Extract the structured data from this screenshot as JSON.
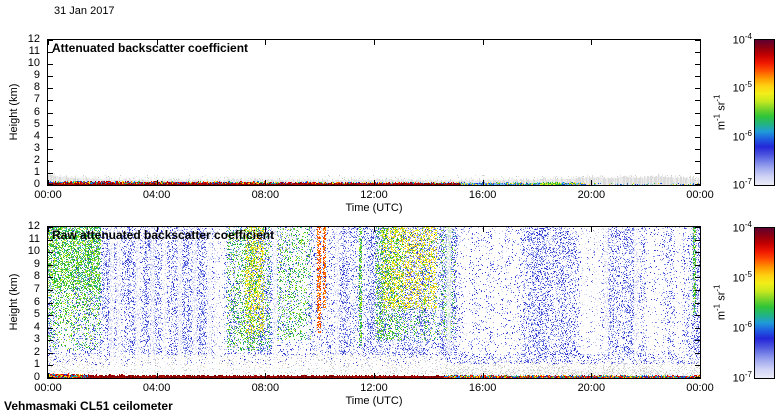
{
  "page": {
    "date_label": "31 Jan 2017",
    "footer_label": "Vehmasmaki CL51 ceilometer",
    "background": "#ffffff"
  },
  "palettes": {
    "blues": [
      "#d6dbf5",
      "#b8c1f0",
      "#96a3ea",
      "#6f7ee2",
      "#4a55d8",
      "#2f36cc",
      "#8d9cee"
    ],
    "greens": [
      "#22b32a",
      "#3ec437",
      "#66d32f",
      "#93e027",
      "#bfeb20",
      "#27a44e",
      "#36b9b0"
    ],
    "yellows": [
      "#eff01a",
      "#ffdf17",
      "#d3e816",
      "#ffc013"
    ],
    "oranges": [
      "#ff9a00",
      "#ff7300",
      "#ff4d00",
      "#e83200"
    ],
    "grays": [
      "#dedede",
      "#d2d2d2",
      "#e6e6e6",
      "#c8c8c8"
    ],
    "darkreds": [
      "#7c0000",
      "#960000",
      "#b00000",
      "#640000",
      "#a81400"
    ],
    "bandmix": [
      "#c00000",
      "#ff5a00",
      "#ffd800",
      "#3cc43c",
      "#2244dd",
      "#7a0030",
      "#ff0000",
      "#00a0e0"
    ],
    "bandcool": [
      "#2f7fd6",
      "#3ec437",
      "#2244dd",
      "#66ccee",
      "#ffd800",
      "#8495e8"
    ],
    "greensband": [
      "#3ec437",
      "#bfeb20",
      "#eff01a",
      "#27a44e"
    ]
  },
  "colormap_stops": [
    "#ebecf8",
    "#d3d6f5",
    "#aab2f0",
    "#7a85e8",
    "#4a52dd",
    "#2326d8",
    "#1e5ce0",
    "#1f9bd8",
    "#22b480",
    "#2fc438",
    "#7ad428",
    "#c8e81e",
    "#f2ee18",
    "#ffd012",
    "#ff9800",
    "#ff5000",
    "#f01800",
    "#c40000",
    "#8e0010",
    "#5f0030"
  ],
  "chart_data": [
    {
      "type": "heatmap",
      "title": "Attenuated backscatter coefficient",
      "xlabel": "Time (UTC)",
      "ylabel": "Height (km)",
      "x_tick_labels": [
        "00:00",
        "04:00",
        "08:00",
        "12:00",
        "16:00",
        "20:00",
        "00:00"
      ],
      "y_tick_labels": [
        "0",
        "1",
        "2",
        "3",
        "4",
        "5",
        "6",
        "7",
        "8",
        "9",
        "10",
        "11",
        "12"
      ],
      "xlim_hours": [
        0,
        24
      ],
      "ylim_km": [
        0,
        12
      ],
      "colorbar": {
        "scale": "log",
        "min": "1e-7",
        "max": "1e-4",
        "ticks": [
          {
            "base": "10",
            "exp": "-4"
          },
          {
            "base": "10",
            "exp": "-5"
          },
          {
            "base": "10",
            "exp": "-6"
          },
          {
            "base": "10",
            "exp": "-7"
          }
        ],
        "unit": [
          {
            "base": "m",
            "exp": "-1"
          },
          {
            "base": " sr",
            "exp": "-1"
          }
        ]
      },
      "layers": [
        {
          "type": "gray_columns",
          "color": "#dcdcdc",
          "light": "#ebebeb",
          "spike_km": 0.5,
          "profile": [
            [
              0,
              0.85
            ],
            [
              0.5,
              0.65
            ],
            [
              1,
              0.55
            ],
            [
              1.6,
              0.48
            ],
            [
              2.5,
              0.42
            ],
            [
              4,
              0.38
            ],
            [
              6,
              0.36
            ],
            [
              8,
              0.4
            ],
            [
              10,
              0.36
            ],
            [
              12,
              0.4
            ],
            [
              14,
              0.35
            ],
            [
              16,
              0.37
            ],
            [
              18,
              0.4
            ],
            [
              19,
              0.48
            ],
            [
              20,
              0.6
            ],
            [
              20.6,
              0.52
            ],
            [
              21.2,
              0.66
            ],
            [
              21.8,
              0.56
            ],
            [
              22.4,
              0.7
            ],
            [
              23,
              0.6
            ],
            [
              23.6,
              0.5
            ],
            [
              24,
              0.46
            ]
          ]
        },
        {
          "type": "noise",
          "t0": 0,
          "t1": 24,
          "h0": 0.3,
          "h1": 0.8,
          "density": 0.05,
          "palette": "grays"
        },
        {
          "type": "band",
          "t0": 0,
          "t1": 15.2,
          "top0": 0.24,
          "top1": 0.13,
          "palette": "bandmix"
        },
        {
          "type": "band",
          "t0": 15.2,
          "t1": 19.8,
          "top0": 0.13,
          "top1": 0.1,
          "palette": "bandcool"
        },
        {
          "type": "band",
          "t0": 18.15,
          "t1": 18.85,
          "top0": 0.16,
          "top1": 0.16,
          "palette": "greensband"
        },
        {
          "type": "noise",
          "t0": 19.8,
          "t1": 24,
          "h0": 0,
          "h1": 0.14,
          "density": 0.3,
          "palette": "bandcool"
        },
        {
          "type": "band",
          "t0": 0,
          "t1": 15.2,
          "top0": 0.07,
          "top1": 0.05,
          "palette": "darkreds"
        }
      ]
    },
    {
      "type": "heatmap",
      "title": "Raw attenuated backscatter coefficient",
      "xlabel": "Time (UTC)",
      "ylabel": "Height (km)",
      "x_tick_labels": [
        "00:00",
        "04:00",
        "08:00",
        "12:00",
        "16:00",
        "20:00",
        "00:00"
      ],
      "y_tick_labels": [
        "0",
        "1",
        "2",
        "3",
        "4",
        "5",
        "6",
        "7",
        "8",
        "9",
        "10",
        "11",
        "12"
      ],
      "xlim_hours": [
        0,
        24
      ],
      "ylim_km": [
        0,
        12
      ],
      "colorbar": {
        "scale": "log",
        "min": "1e-7",
        "max": "1e-4",
        "ticks": [
          {
            "base": "10",
            "exp": "-4"
          },
          {
            "base": "10",
            "exp": "-5"
          },
          {
            "base": "10",
            "exp": "-6"
          },
          {
            "base": "10",
            "exp": "-7"
          }
        ],
        "unit": [
          {
            "base": "m",
            "exp": "-1"
          },
          {
            "base": " sr",
            "exp": "-1"
          }
        ]
      },
      "layers": [
        {
          "type": "noise",
          "t0": 0,
          "t1": 24,
          "h0": 1.85,
          "h1": 12,
          "density": 0.55,
          "palette": "blues",
          "column_jitter": true
        },
        {
          "type": "noise",
          "t0": 0,
          "t1": 1.95,
          "h0": 2.2,
          "h1": 12,
          "density": 0.55,
          "palette": "greens",
          "fade": "bottom"
        },
        {
          "type": "noise",
          "t0": 0,
          "t1": 1.95,
          "h0": 7,
          "h1": 12,
          "density": 0.25,
          "palette": "greens"
        },
        {
          "type": "noise",
          "t0": 6.6,
          "t1": 8.2,
          "h0": 2.2,
          "h1": 12,
          "density": 0.4,
          "palette": "greens",
          "column_jitter": true
        },
        {
          "type": "noise",
          "t0": 7.25,
          "t1": 7.95,
          "h0": 3.5,
          "h1": 12,
          "density": 0.3,
          "palette": "yellows"
        },
        {
          "type": "noise",
          "t0": 8.45,
          "t1": 9.7,
          "h0": 3,
          "h1": 12,
          "density": 0.22,
          "palette": "greens",
          "column_jitter": true
        },
        {
          "type": "noise",
          "t0": 12.05,
          "t1": 15.0,
          "h0": 3,
          "h1": 12,
          "density": 0.5,
          "palette": "greens",
          "column_jitter": true
        },
        {
          "type": "noise",
          "t0": 12.3,
          "t1": 14.3,
          "h0": 5.5,
          "h1": 12,
          "density": 0.28,
          "palette": "yellows"
        },
        {
          "type": "vline",
          "t": 9.98,
          "h0": 3.5,
          "h1": 12,
          "width_h": 0.1,
          "palette": "oranges"
        },
        {
          "type": "vline",
          "t": 10.18,
          "h0": 5.5,
          "h1": 12,
          "width_h": 0.07,
          "palette": "oranges"
        },
        {
          "type": "vline",
          "t": 11.5,
          "h0": 2.5,
          "h1": 12,
          "width_h": 0.08,
          "palette": "greens"
        },
        {
          "type": "vline",
          "t": 23.8,
          "h0": 5,
          "h1": 12,
          "width_h": 0.07,
          "palette": "greens"
        },
        {
          "type": "noise",
          "t0": 0,
          "t1": 14.6,
          "h0": 0.3,
          "h1": 1.95,
          "density": 0.12,
          "palette": "grays"
        },
        {
          "type": "noise",
          "t0": 0,
          "t1": 14.6,
          "h0": 1.0,
          "h1": 1.95,
          "density": 0.08,
          "palette": "blues"
        },
        {
          "type": "stripes",
          "times": [
            2.35,
            2.6,
            3.3,
            3.85,
            4.3,
            4.85,
            5.4,
            5.95,
            6.2,
            8.35,
            10.65,
            14.75,
            19.75,
            20.2,
            20.55,
            21.65
          ],
          "width_h": 0.16,
          "alpha": 0.72
        },
        {
          "type": "noise",
          "t0": 14.6,
          "t1": 24,
          "h0": 0,
          "h1": 1.4,
          "density": 0.5,
          "palette": "grays",
          "fade": "top"
        },
        {
          "type": "noise",
          "t0": 14.6,
          "t1": 24,
          "h0": 1.1,
          "h1": 1.9,
          "density": 0.28,
          "palette": "blues"
        },
        {
          "type": "band",
          "t0": 0,
          "t1": 1.5,
          "top0": 0.3,
          "top1": 0.2,
          "palette": "bandmix"
        },
        {
          "type": "band",
          "t0": 1.5,
          "t1": 14.6,
          "top0": 0.17,
          "top1": 0.12,
          "palette": "darkreds"
        },
        {
          "type": "band",
          "t0": 14.6,
          "t1": 24,
          "top0": 0.14,
          "top1": 0.12,
          "palette": "bandmix"
        }
      ]
    }
  ]
}
